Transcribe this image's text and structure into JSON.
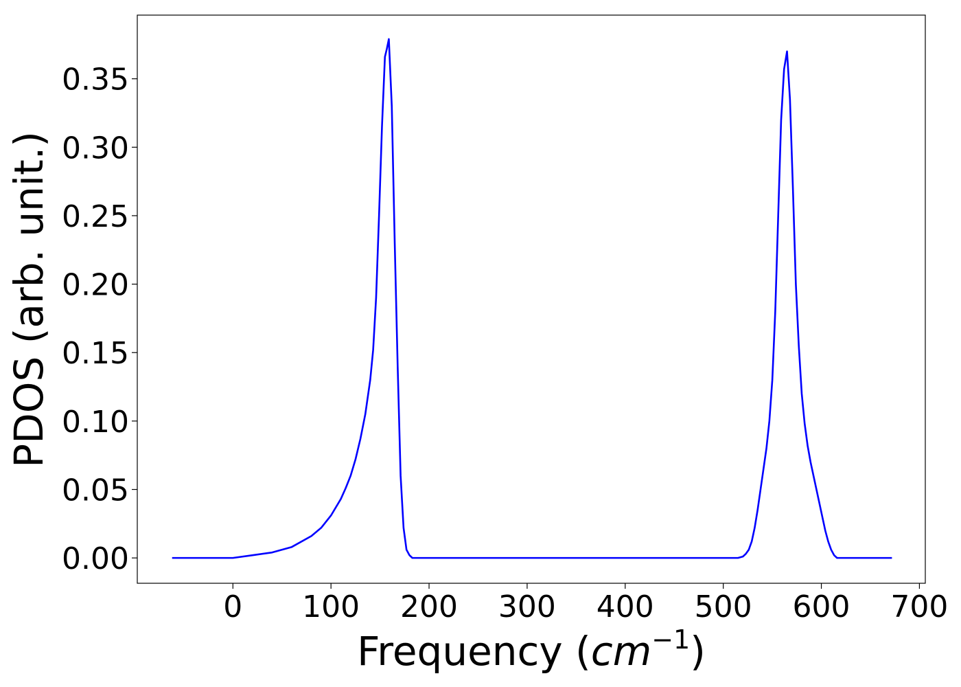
{
  "chart_data": {
    "type": "line",
    "title": "",
    "xlabel": {
      "prefix": "Frequency (",
      "unit_base": "cm",
      "unit_exp": "−1",
      "suffix": ")"
    },
    "ylabel": "PDOS (arb. unit.)",
    "xlim": [
      -97.5,
      706
    ],
    "ylim": [
      -0.0185,
      0.3965
    ],
    "xticks": [
      0,
      100,
      200,
      300,
      400,
      500,
      600,
      700
    ],
    "xtick_labels": [
      "0",
      "100",
      "200",
      "300",
      "400",
      "500",
      "600",
      "700"
    ],
    "yticks": [
      0.0,
      0.05,
      0.1,
      0.15,
      0.2,
      0.25,
      0.3,
      0.35
    ],
    "ytick_labels": [
      "0.00",
      "0.05",
      "0.10",
      "0.15",
      "0.20",
      "0.25",
      "0.30",
      "0.35"
    ],
    "grid": false,
    "legend": "none",
    "series": [
      {
        "color": "#0000ff",
        "x": [
          -62,
          -20,
          0,
          20,
          40,
          60,
          80,
          90,
          100,
          110,
          115,
          120,
          125,
          130,
          135,
          140,
          143,
          146,
          149,
          152,
          155,
          157,
          159,
          162,
          165,
          168,
          171,
          174,
          177,
          180,
          183,
          186,
          190,
          200,
          300,
          400,
          500,
          515,
          520,
          523,
          526,
          529,
          532,
          535,
          538,
          541,
          544,
          547,
          550,
          553,
          556,
          559,
          562,
          565,
          568,
          571,
          574,
          577,
          580,
          583,
          586,
          589,
          592,
          595,
          598,
          601,
          604,
          607,
          610,
          613,
          616,
          619,
          622,
          625,
          630,
          640,
          672
        ],
        "y": [
          0.0,
          0.0,
          0.0,
          0.002,
          0.004,
          0.008,
          0.016,
          0.022,
          0.031,
          0.043,
          0.051,
          0.06,
          0.072,
          0.087,
          0.105,
          0.13,
          0.152,
          0.19,
          0.25,
          0.315,
          0.366,
          0.372,
          0.379,
          0.33,
          0.23,
          0.14,
          0.06,
          0.022,
          0.006,
          0.002,
          0.0,
          0.0,
          0.0,
          0.0,
          0.0,
          0.0,
          0.0,
          0.0,
          0.001,
          0.003,
          0.006,
          0.012,
          0.022,
          0.035,
          0.05,
          0.065,
          0.08,
          0.1,
          0.13,
          0.18,
          0.25,
          0.32,
          0.357,
          0.37,
          0.335,
          0.27,
          0.2,
          0.155,
          0.12,
          0.098,
          0.082,
          0.07,
          0.06,
          0.05,
          0.04,
          0.03,
          0.02,
          0.012,
          0.006,
          0.002,
          0.0,
          0.0,
          0.0,
          0.0,
          0.0,
          0.0,
          0.0
        ]
      }
    ]
  }
}
